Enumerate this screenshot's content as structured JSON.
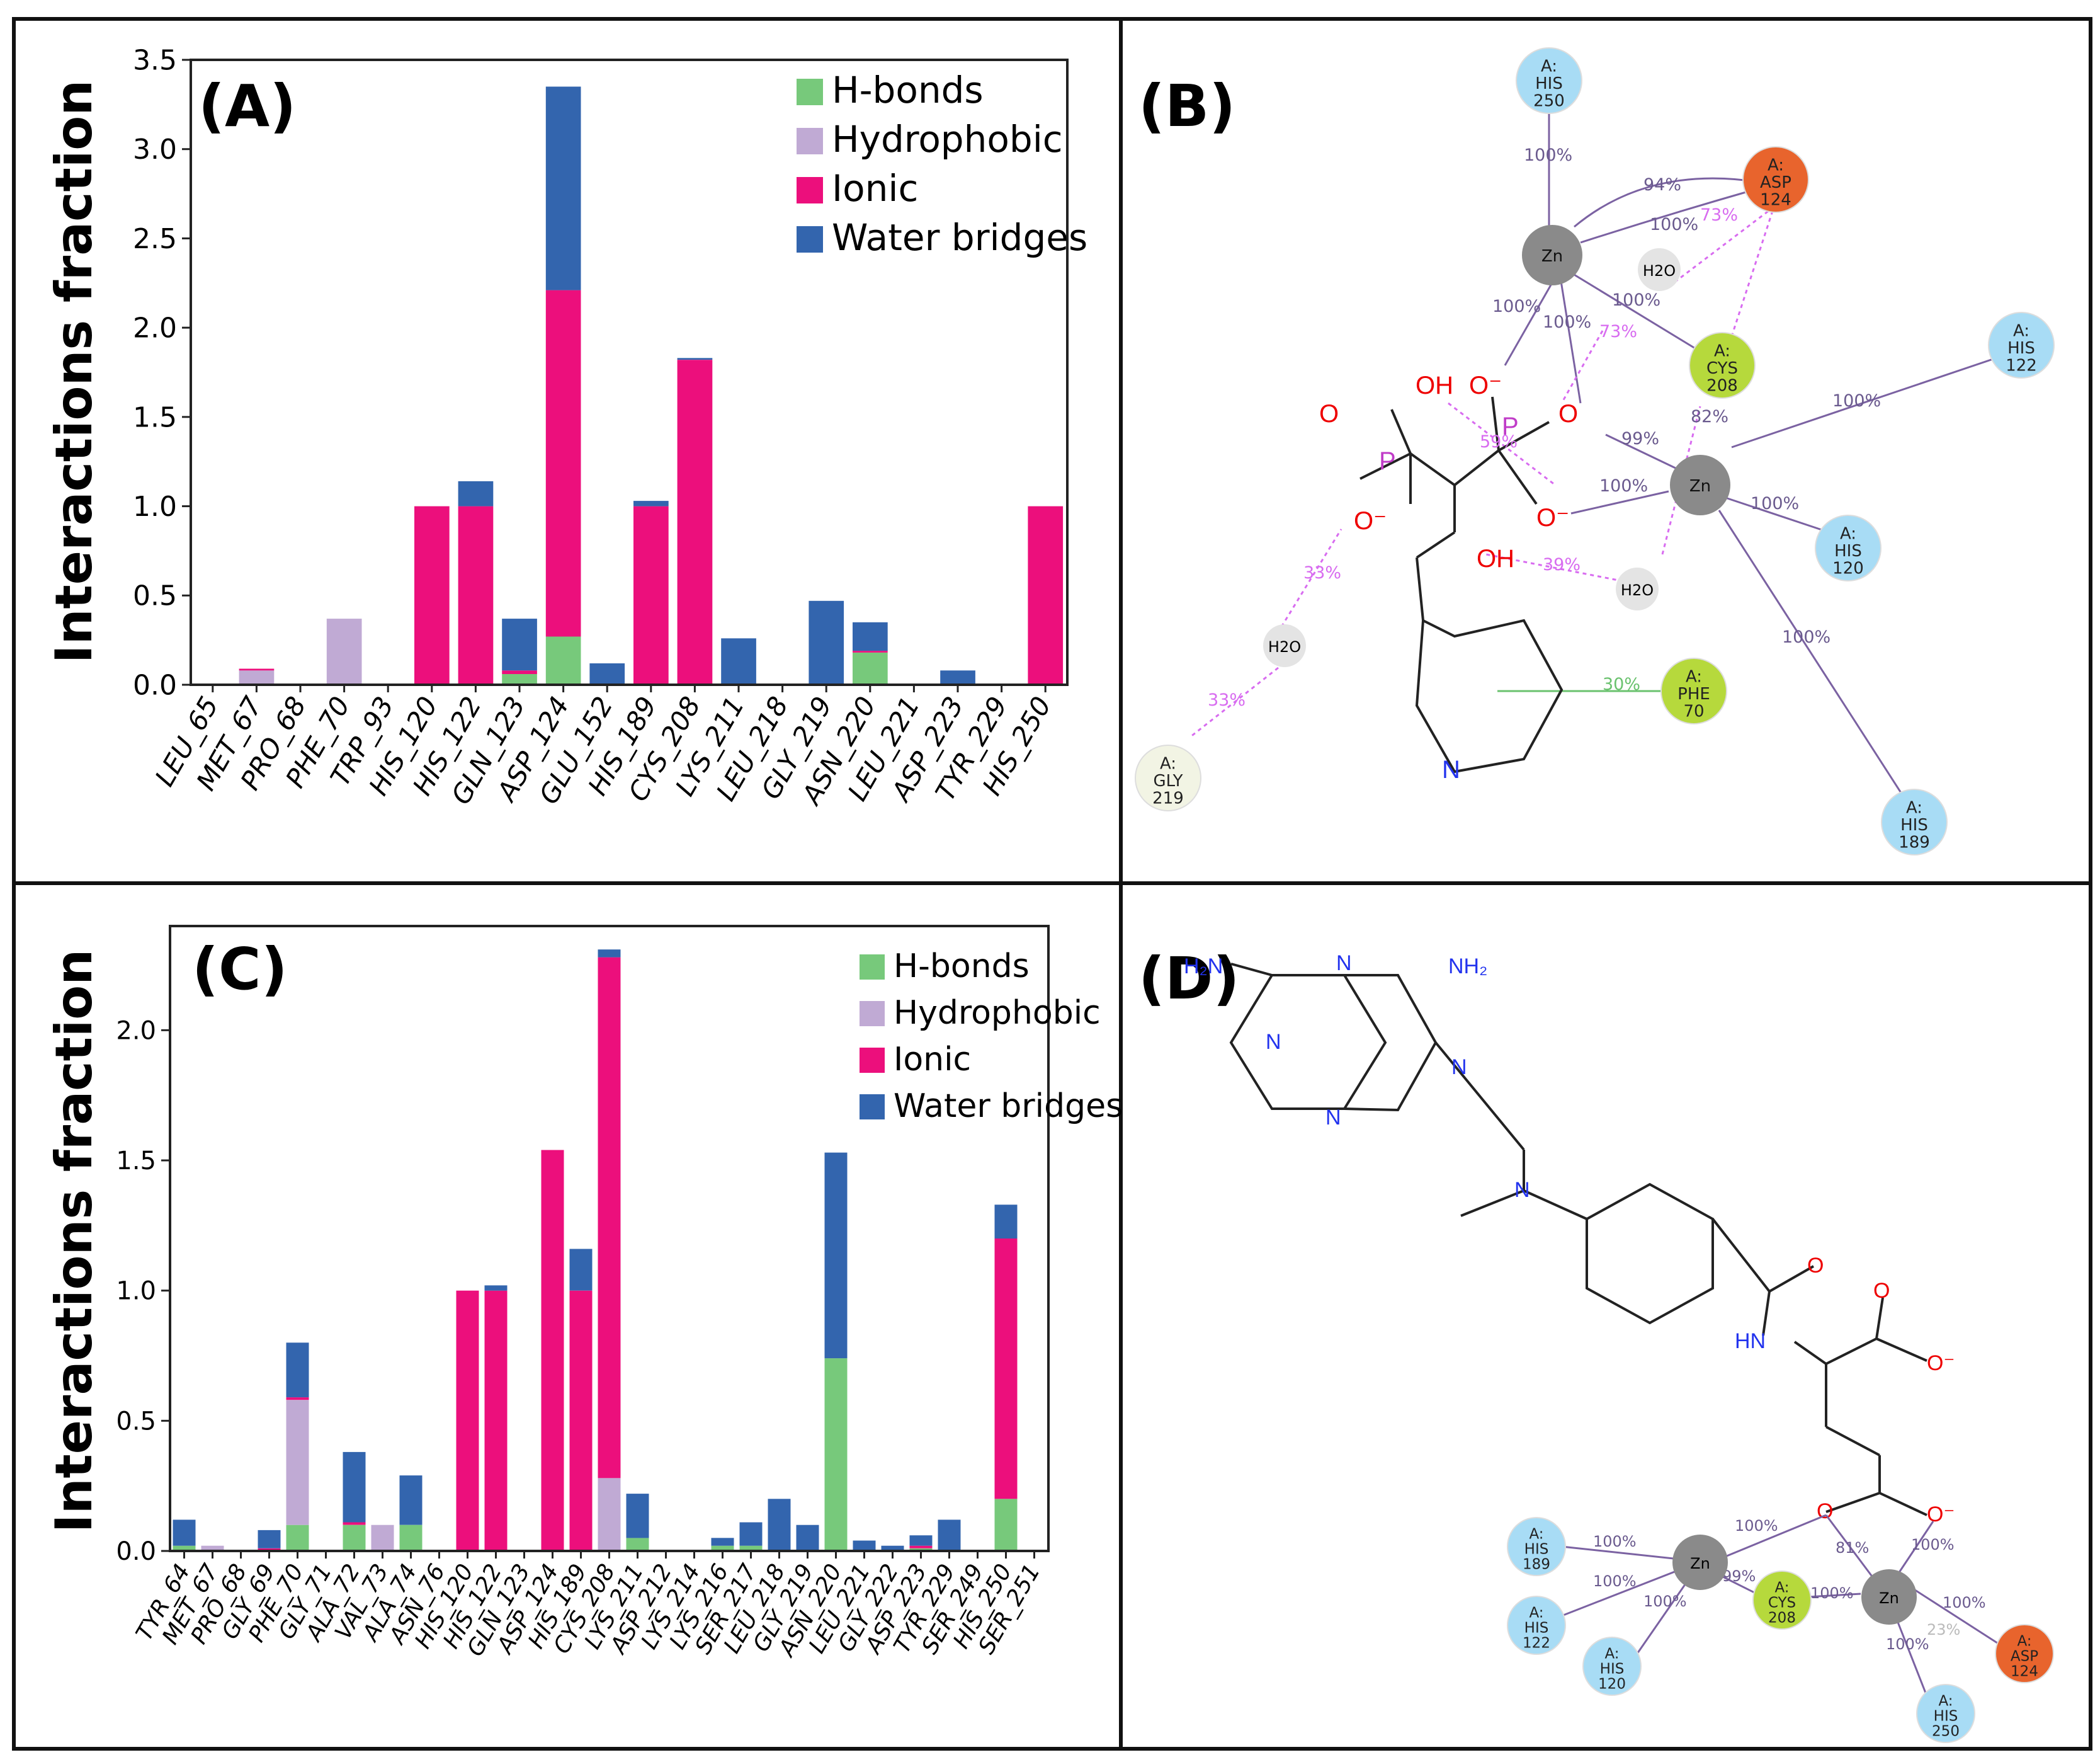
{
  "colors": {
    "hbonds": "#77c97b",
    "hydrophobic": "#c0aad4",
    "ionic": "#ec0f7c",
    "water": "#3365ae",
    "frame": "#111111",
    "metal": "#8a8a8a",
    "his_node": "#a8dcf5",
    "cys_node": "#b6d93c",
    "asp_node": "#e8642d",
    "gly_node": "#f2f4e4",
    "water_node": "#e4e4e4",
    "bond_purple": "#7b62a2",
    "bond_pink": "#d86cf0",
    "bond_green": "#6ac26e"
  },
  "panels": {
    "A": "(A)",
    "B": "(B)",
    "C": "(C)",
    "D": "(D)"
  },
  "chart_data": [
    {
      "id": "A",
      "type": "bar",
      "stacked": true,
      "title": "(A)",
      "xlabel": "",
      "ylabel": "Interactions fraction",
      "ylim": [
        0,
        3.5
      ],
      "yticks": [
        "0.0",
        "0.5",
        "1.0",
        "1.5",
        "2.0",
        "2.5",
        "3.0",
        "3.5"
      ],
      "legend_position": "top-right",
      "categories": [
        "LEU_65",
        "MET_67",
        "PRO_68",
        "PHE_70",
        "TRP_93",
        "HIS_120",
        "HIS_122",
        "GLN_123",
        "ASP_124",
        "GLU_152",
        "HIS_189",
        "CYS_208",
        "LYS_211",
        "LEU_218",
        "GLY_219",
        "ASN_220",
        "LEU_221",
        "ASP_223",
        "TYR_229",
        "HIS_250"
      ],
      "series": [
        {
          "name": "H-bonds",
          "values": [
            0,
            0,
            0,
            0,
            0,
            0,
            0,
            0.06,
            0.27,
            0,
            0,
            0,
            0,
            0,
            0,
            0.18,
            0,
            0,
            0,
            0
          ]
        },
        {
          "name": "Hydrophobic",
          "values": [
            0,
            0.08,
            0,
            0.37,
            0,
            0,
            0,
            0,
            0,
            0,
            0,
            0,
            0,
            0,
            0,
            0,
            0,
            0,
            0,
            0
          ]
        },
        {
          "name": "Ionic",
          "values": [
            0,
            0.01,
            0,
            0,
            0,
            1.0,
            1.0,
            0.02,
            1.94,
            0,
            1.0,
            1.82,
            0,
            0,
            0,
            0.01,
            0,
            0,
            0,
            1.0
          ]
        },
        {
          "name": "Water bridges",
          "values": [
            0,
            0,
            0,
            0,
            0,
            0,
            0.14,
            0.29,
            1.14,
            0.12,
            0.03,
            0.01,
            0.26,
            0,
            0.47,
            0.16,
            0,
            0.08,
            0,
            0
          ]
        }
      ]
    },
    {
      "id": "C",
      "type": "bar",
      "stacked": true,
      "title": "(C)",
      "xlabel": "",
      "ylabel": "Interactions fraction",
      "ylim": [
        0,
        2.4
      ],
      "yticks": [
        "0.0",
        "0.5",
        "1.0",
        "1.5",
        "2.0"
      ],
      "legend_position": "top-right",
      "categories": [
        "TYR_64",
        "MET_67",
        "PRO_68",
        "GLY_69",
        "PHE_70",
        "GLY_71",
        "ALA_72",
        "VAL_73",
        "ALA_74",
        "ASN_76",
        "HIS_120",
        "HIS_122",
        "GLN_123",
        "ASP_124",
        "HIS_189",
        "CYS_208",
        "LYS_211",
        "ASP_212",
        "LYS_214",
        "LYS_216",
        "SER_217",
        "LEU_218",
        "GLY_219",
        "ASN_220",
        "LEU_221",
        "GLY_222",
        "ASP_223",
        "TYR_229",
        "SER_249",
        "HIS_250",
        "SER_251"
      ],
      "series": [
        {
          "name": "H-bonds",
          "values": [
            0.02,
            0,
            0,
            0,
            0.1,
            0,
            0.1,
            0,
            0.1,
            0,
            0,
            0,
            0,
            0,
            0,
            0,
            0.05,
            0,
            0,
            0.02,
            0.02,
            0,
            0,
            0.74,
            0,
            0,
            0.01,
            0,
            0,
            0.2,
            0
          ]
        },
        {
          "name": "Hydrophobic",
          "values": [
            0,
            0.02,
            0,
            0,
            0.48,
            0,
            0,
            0.1,
            0,
            0,
            0,
            0,
            0,
            0,
            0,
            0.28,
            0,
            0,
            0,
            0,
            0,
            0,
            0,
            0,
            0,
            0,
            0,
            0,
            0,
            0,
            0
          ]
        },
        {
          "name": "Ionic",
          "values": [
            0,
            0,
            0,
            0.01,
            0.01,
            0,
            0.01,
            0,
            0,
            0,
            1.0,
            1.0,
            0,
            1.54,
            1.0,
            2.0,
            0,
            0,
            0,
            0,
            0,
            0,
            0,
            0,
            0,
            0,
            0.01,
            0,
            0,
            1.0,
            0
          ]
        },
        {
          "name": "Water bridges",
          "values": [
            0.1,
            0,
            0,
            0.07,
            0.21,
            0,
            0.27,
            0,
            0.19,
            0,
            0,
            0.02,
            0,
            0,
            0.16,
            0.03,
            0.17,
            0,
            0,
            0.03,
            0.09,
            0.2,
            0.1,
            0.79,
            0.04,
            0.02,
            0.04,
            0.12,
            0,
            0.13,
            0
          ]
        }
      ]
    }
  ],
  "panel_B": {
    "residues": [
      {
        "id": "his250",
        "chain": "A:",
        "name": "HIS",
        "num": "250"
      },
      {
        "id": "asp124",
        "chain": "A:",
        "name": "ASP",
        "num": "124"
      },
      {
        "id": "his122",
        "chain": "A:",
        "name": "HIS",
        "num": "122"
      },
      {
        "id": "cys208",
        "chain": "A:",
        "name": "CYS",
        "num": "208"
      },
      {
        "id": "his120",
        "chain": "A:",
        "name": "HIS",
        "num": "120"
      },
      {
        "id": "his189",
        "chain": "A:",
        "name": "HIS",
        "num": "189"
      },
      {
        "id": "phe70",
        "chain": "A:",
        "name": "PHE",
        "num": "70"
      },
      {
        "id": "gly219",
        "chain": "A:",
        "name": "GLY",
        "num": "219"
      }
    ],
    "metals": [
      "Zn",
      "Zn"
    ],
    "water": "H2O",
    "atoms": {
      "oh": "OH",
      "om": "O⁻",
      "o": "O",
      "p": "P",
      "n": "N"
    },
    "percents": [
      "100%",
      "94%",
      "100%",
      "73%",
      "100%",
      "100%",
      "100%",
      "73%",
      "82%",
      "99%",
      "100%",
      "100%",
      "100%",
      "59%",
      "100%",
      "39%",
      "33%",
      "33%",
      "30%",
      "100%",
      "100%"
    ]
  },
  "panel_D": {
    "residues": [
      {
        "id": "his189",
        "chain": "A:",
        "name": "HIS",
        "num": "189"
      },
      {
        "id": "his122",
        "chain": "A:",
        "name": "HIS",
        "num": "122"
      },
      {
        "id": "his120",
        "chain": "A:",
        "name": "HIS",
        "num": "120"
      },
      {
        "id": "cys208",
        "chain": "A:",
        "name": "CYS",
        "num": "208"
      },
      {
        "id": "asp124",
        "chain": "A:",
        "name": "ASP",
        "num": "124"
      },
      {
        "id": "his250",
        "chain": "A:",
        "name": "HIS",
        "num": "250"
      }
    ],
    "metals": [
      "Zn",
      "Zn"
    ],
    "atoms": {
      "h2n": "H₂N",
      "nh2": "NH₂",
      "n": "N",
      "hn": "HN",
      "o": "O",
      "om": "O⁻"
    },
    "percents": [
      "100%",
      "100%",
      "100%",
      "100%",
      "99%",
      "100%",
      "81%",
      "100%",
      "100%",
      "100%",
      "100%",
      "23%"
    ]
  }
}
